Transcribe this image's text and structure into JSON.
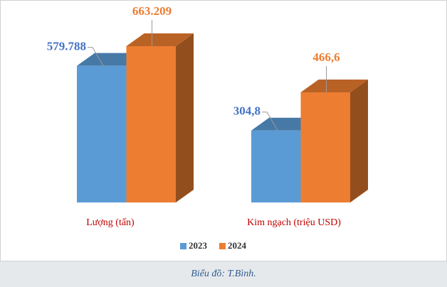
{
  "chart_data": {
    "type": "bar3d",
    "categories": [
      "Lượng (tấn)",
      "Kim ngạch (triệu USD)"
    ],
    "series": [
      {
        "name": "2023",
        "color": "#5b9bd5",
        "values": [
          579788,
          304.8
        ],
        "value_labels": [
          "579.788",
          "304,8"
        ]
      },
      {
        "name": "2024",
        "color": "#ed7d31",
        "values": [
          663209,
          466.6
        ],
        "value_labels": [
          "663.209",
          "466,6"
        ]
      }
    ],
    "caption": "Biểu đồ: T.Bình."
  }
}
